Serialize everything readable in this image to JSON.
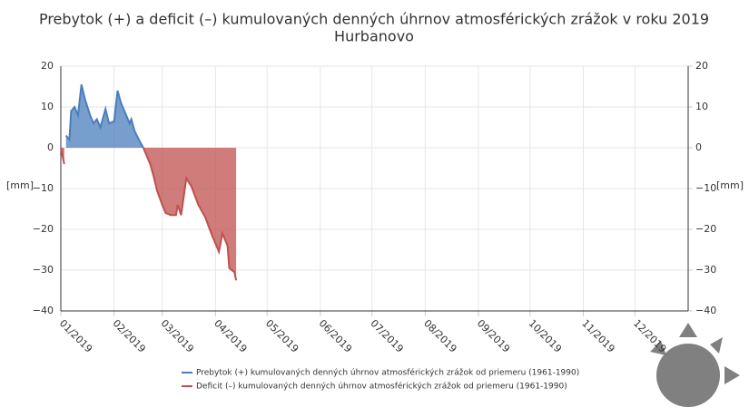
{
  "chart_data": {
    "type": "area",
    "title": "Prebytok (+) a deficit (–) kumulovaných denných úhrnov atmosférických zrážok v roku 2019",
    "subtitle": "Hurbanovo",
    "y_label": "[mm]",
    "y2_label": "[mm]",
    "x": [
      1,
      2,
      3,
      4,
      6,
      7,
      9,
      11,
      13,
      15,
      18,
      20,
      22,
      24,
      27,
      29,
      32,
      34,
      36,
      39,
      41,
      42,
      44,
      47,
      49,
      51,
      53,
      55,
      57,
      60,
      62,
      65,
      68,
      69,
      71,
      74,
      77,
      81,
      85,
      89,
      93,
      95,
      98,
      99,
      102,
      103
    ],
    "series": [
      {
        "name": "Prebytok (+) kumulovaných denných úhrnov atmosférických zrážok od priemeru (1961-1990)",
        "color": "#4a7ebb",
        "values": [
          0,
          null,
          null,
          3,
          2,
          9,
          10,
          8,
          15.5,
          12,
          8,
          6,
          7,
          5,
          9.5,
          6,
          6.5,
          14,
          11,
          8,
          6,
          7,
          4,
          1.5,
          0,
          null,
          null,
          null,
          null,
          null,
          null,
          null,
          null,
          null,
          null,
          null,
          null,
          null,
          null,
          null,
          null,
          null,
          null,
          null,
          null,
          null
        ]
      },
      {
        "name": "Deficit (–) kumulovaných denných úhrnov atmosférických zrážok od priemeru (1961-1990)",
        "color": "#c0504d",
        "values": [
          0,
          -2,
          -4,
          null,
          null,
          null,
          null,
          null,
          null,
          null,
          null,
          null,
          null,
          null,
          null,
          null,
          null,
          null,
          null,
          null,
          null,
          null,
          null,
          null,
          0,
          -2,
          -4,
          -7,
          -10.5,
          -14,
          -16,
          -16.5,
          -16.5,
          -14,
          -16.5,
          -7.5,
          -9.5,
          -14,
          -17,
          -21.5,
          -25.5,
          -21,
          -24,
          -29.5,
          -30.5,
          -32.5
        ]
      }
    ],
    "xlim": [
      1,
      366
    ],
    "xticks": [
      {
        "value": 1,
        "label": "01/2019"
      },
      {
        "value": 32,
        "label": "02/2019"
      },
      {
        "value": 60,
        "label": "03/2019"
      },
      {
        "value": 91,
        "label": "04/2019"
      },
      {
        "value": 121,
        "label": "05/2019"
      },
      {
        "value": 152,
        "label": "06/2019"
      },
      {
        "value": 182,
        "label": "07/2019"
      },
      {
        "value": 213,
        "label": "08/2019"
      },
      {
        "value": 244,
        "label": "09/2019"
      },
      {
        "value": 274,
        "label": "10/2019"
      },
      {
        "value": 305,
        "label": "11/2019"
      },
      {
        "value": 335,
        "label": "12/2019"
      }
    ],
    "ylim": [
      -40,
      20
    ],
    "yticks": [
      {
        "value": -40,
        "label": "−40"
      },
      {
        "value": -30,
        "label": "−30"
      },
      {
        "value": -20,
        "label": "−20"
      },
      {
        "value": -10,
        "label": "−10"
      },
      0,
      10,
      20
    ],
    "y2lim": [
      -40,
      20
    ],
    "y2ticks": [
      {
        "value": -40,
        "label": "−40"
      },
      {
        "value": -30,
        "label": "−30"
      },
      {
        "value": -20,
        "label": "−20"
      },
      {
        "value": -10,
        "label": "−10"
      },
      0,
      10,
      20
    ],
    "grid": true
  }
}
